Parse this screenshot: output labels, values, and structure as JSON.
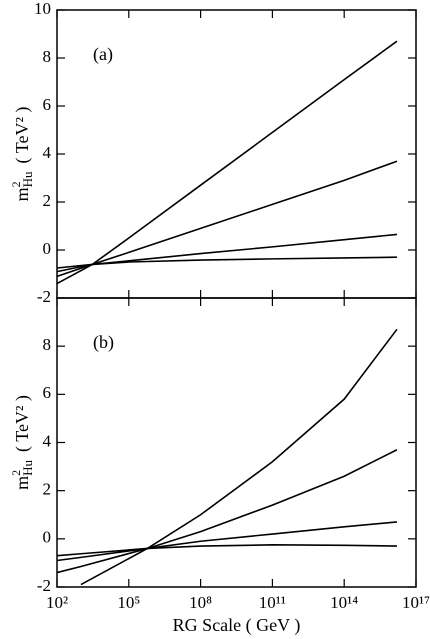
{
  "chart_data": [
    {
      "type": "line",
      "annotation": "(a)",
      "ylabel": {
        "base": "m",
        "sup": "2",
        "sub": "Hu",
        "unit": "( TeV² )"
      },
      "xscale": "log",
      "xlim": [
        100,
        1e+17
      ],
      "ylim": [
        -2,
        10
      ],
      "yticks": [
        -2,
        0,
        2,
        4,
        6,
        8,
        10
      ],
      "x": [
        100,
        3000,
        100000,
        100000000.0,
        100000000000.0,
        100000000000000.0,
        1.6e+16
      ],
      "series": [
        {
          "color": "#000000",
          "values": [
            -1.4,
            -0.6,
            0.5,
            2.7,
            4.9,
            7.1,
            8.7
          ]
        },
        {
          "color": "#000000",
          "values": [
            -1.1,
            -0.6,
            -0.1,
            0.9,
            1.9,
            2.9,
            3.7
          ]
        },
        {
          "color": "#000000",
          "values": [
            -0.9,
            -0.6,
            -0.45,
            -0.15,
            0.13,
            0.43,
            0.65
          ]
        },
        {
          "color": "#000000",
          "values": [
            -0.75,
            -0.6,
            -0.5,
            -0.42,
            -0.37,
            -0.33,
            -0.3
          ]
        }
      ]
    },
    {
      "type": "line",
      "annotation": "(b)",
      "ylabel": {
        "base": "m",
        "sup": "2",
        "sub": "Hu",
        "unit": "( TeV² )"
      },
      "xlabel": "RG Scale ( GeV )",
      "xscale": "log",
      "xlim": [
        100,
        1e+17
      ],
      "ylim": [
        -2,
        10
      ],
      "yticks": [
        -2,
        0,
        2,
        4,
        6,
        8
      ],
      "xticks": [
        {
          "value": 100,
          "label": "10²"
        },
        {
          "value": 100000,
          "label": "10⁵"
        },
        {
          "value": 100000000.0,
          "label": "10⁸"
        },
        {
          "value": 100000000000.0,
          "label": "10¹¹"
        },
        {
          "value": 100000000000000.0,
          "label": "10¹⁴"
        },
        {
          "value": 1e+17,
          "label": "10¹⁷"
        }
      ],
      "x": [
        100,
        1000,
        600000,
        100000000.0,
        100000000000.0,
        100000000000000.0,
        1.6e+16
      ],
      "series": [
        {
          "color": "#000000",
          "values": [
            null,
            -1.9,
            -0.4,
            1.0,
            3.2,
            5.8,
            8.7
          ]
        },
        {
          "color": "#000000",
          "values": [
            -1.4,
            -1.15,
            -0.4,
            0.3,
            1.4,
            2.6,
            3.7
          ]
        },
        {
          "color": "#000000",
          "values": [
            -0.9,
            -0.77,
            -0.4,
            -0.1,
            0.2,
            0.5,
            0.7
          ]
        },
        {
          "color": "#000000",
          "values": [
            -0.7,
            -0.62,
            -0.4,
            -0.3,
            -0.25,
            -0.27,
            -0.3
          ]
        }
      ]
    }
  ]
}
